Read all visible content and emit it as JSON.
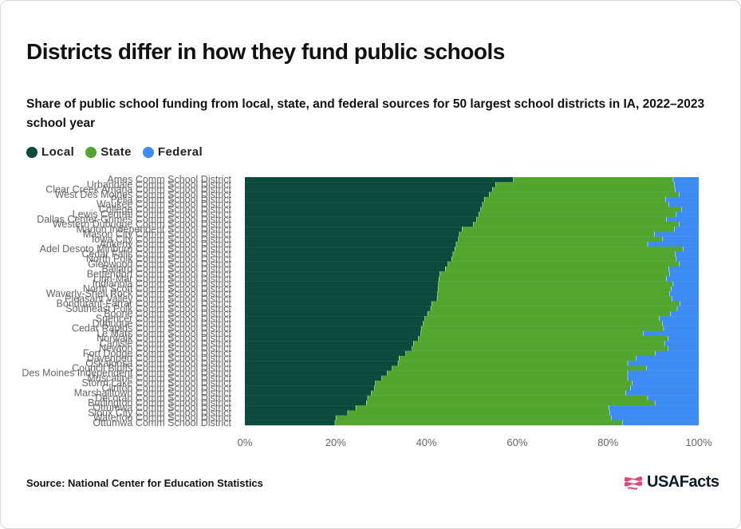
{
  "title": "Districts differ in how they fund public schools",
  "subtitle": "Share of public school funding from local, state, and federal sources for 50 largest school districts in IA, 2022–2023 school year",
  "source": "Source: National Center for Education Statistics",
  "logo": {
    "text": "USAFacts",
    "icon": "usafacts-flag-icon"
  },
  "colors": {
    "Local": "#0b4a3c",
    "State": "#52a52e",
    "Federal": "#3d8bf3"
  },
  "chart_data": {
    "type": "bar",
    "orientation": "horizontal",
    "stacked": true,
    "xlim": [
      0,
      100
    ],
    "xticks": [
      "0%",
      "20%",
      "40%",
      "60%",
      "80%",
      "100%"
    ],
    "grid": false,
    "legend": "top-left",
    "categories": [
      "Ames Comm School District",
      "Urbandale Comm School District",
      "Clear Creek Amana Comm School District",
      "West Des Moines Comm School District",
      "Pella Comm School District",
      "Waukee Comm School District",
      "College Comm School District",
      "Lewis Central Comm School District",
      "Dallas Center-Grimes Comm School District",
      "Western Dubuque Comm School District",
      "Marion Independent School District",
      "Mason City Comm School District",
      "Iowa City Comm School District",
      "Ankeny Comm School District",
      "Adel Desoto Minburn Comm School District",
      "Cedar Falls Comm School District",
      "North Polk Comm School District",
      "Glenwood Comm School District",
      "Ballard Comm School District",
      "Bettendorf Comm School District",
      "Linn-Mar Comm School District",
      "Indianola Comm School District",
      "North Scott Comm School District",
      "Waverly-Shell Rock Comm School District",
      "Pleasant Valley Comm School District",
      "Bondurant-Farrar Comm School District",
      "Southeast Polk Comm School District",
      "Boone Comm School District",
      "Spencer Comm School District",
      "Dubuque Comm School District",
      "Cedar Rapids Comm School District",
      "Le Mars Comm School District",
      "Norwalk Comm School District",
      "Carlisle Comm School District",
      "Newton Comm School District",
      "Fort Dodge Comm School District",
      "Davenport Comm School District",
      "Oskaloosa Comm School District",
      "Council Bluffs Comm School District",
      "Des Moines Independent Comm School District",
      "Muscatine Comm School District",
      "Storm Lake Comm School District",
      "Clinton Comm School District",
      "Marshalltown Comm School District",
      "Decorah Comm School District",
      "Burlington Comm School District",
      "Ottumwa Comm School District",
      "Sioux City Comm School District",
      "Waterloo Comm School District",
      "Ottumwa Comm School District"
    ],
    "series": [
      {
        "name": "Local",
        "values": [
          59.2,
          55.3,
          54.6,
          53.9,
          52.8,
          52.4,
          52.0,
          51.6,
          51.1,
          50.4,
          47.9,
          47.3,
          47.1,
          46.6,
          46.3,
          45.9,
          45.6,
          44.8,
          44.2,
          43.0,
          42.8,
          42.7,
          42.6,
          42.5,
          42.4,
          41.2,
          41.0,
          40.3,
          39.7,
          39.3,
          38.9,
          38.8,
          38.3,
          37.2,
          36.9,
          35.5,
          34.0,
          33.8,
          32.5,
          31.4,
          30.2,
          28.8,
          28.6,
          27.9,
          27.1,
          26.8,
          24.5,
          22.7,
          20.1,
          19.9
        ]
      },
      {
        "name": "State",
        "values": [
          35.2,
          39.4,
          40.2,
          41.8,
          39.9,
          41.1,
          44.3,
          43.5,
          41.8,
          45.3,
          46.8,
          43.0,
          45.0,
          42.2,
          50.3,
          49.0,
          49.5,
          51.0,
          49.3,
          50.6,
          50.1,
          51.7,
          51.4,
          51.1,
          51.7,
          54.7,
          54.3,
          53.5,
          51.7,
          52.8,
          53.4,
          49.0,
          55.0,
          55.3,
          56.4,
          55.0,
          52.3,
          50.6,
          56.0,
          53.0,
          54.2,
          56.6,
          56.4,
          56.1,
          61.7,
          63.6,
          55.8,
          57.7,
          60.7,
          63.4
        ]
      },
      {
        "name": "Federal",
        "values": [
          5.6,
          5.3,
          5.2,
          4.3,
          7.3,
          6.5,
          3.7,
          4.9,
          7.1,
          4.3,
          5.3,
          9.7,
          7.9,
          11.2,
          3.4,
          5.1,
          4.9,
          4.2,
          6.5,
          6.4,
          7.1,
          5.6,
          6.0,
          6.4,
          5.9,
          4.1,
          4.7,
          6.2,
          8.6,
          7.9,
          7.7,
          12.2,
          6.7,
          7.5,
          6.7,
          9.5,
          13.7,
          15.6,
          11.5,
          15.6,
          15.6,
          14.6,
          15.0,
          16.0,
          11.2,
          9.6,
          19.7,
          19.6,
          19.2,
          16.7
        ]
      }
    ]
  }
}
